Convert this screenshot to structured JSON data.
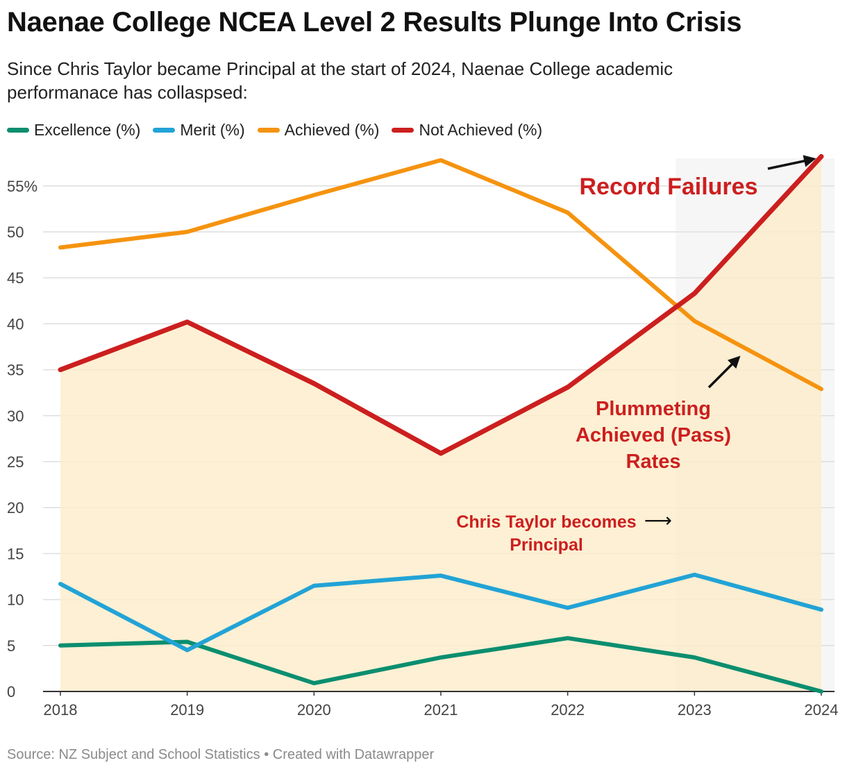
{
  "title": "Naenae College NCEA Level 2 Results Plunge Into Crisis",
  "subtitle": "Since Chris Taylor became Principal at the start of 2024, Naenae College academic performanace has collaspsed:",
  "footer": {
    "source": "Source: NZ Subject and School Statistics",
    "separator": "•",
    "credit": "Created with Datawrapper"
  },
  "chart_data": {
    "type": "line",
    "categories": [
      "2018",
      "2019",
      "2020",
      "2021",
      "2022",
      "2023",
      "2024"
    ],
    "series": [
      {
        "name": "Excellence (%)",
        "color": "#0a8e6f",
        "values": [
          5.0,
          5.4,
          0.9,
          3.7,
          5.8,
          3.7,
          0.0
        ]
      },
      {
        "name": "Merit (%)",
        "color": "#22a3d6",
        "values": [
          11.7,
          4.5,
          11.5,
          12.6,
          9.1,
          12.7,
          8.9
        ]
      },
      {
        "name": "Achieved (%)",
        "color": "#f5930f",
        "values": [
          48.3,
          50.0,
          54.0,
          57.8,
          52.1,
          40.3,
          32.9
        ]
      },
      {
        "name": "Not Achieved (%)",
        "color": "#cc1f1f",
        "values": [
          35.0,
          40.2,
          33.5,
          25.9,
          33.1,
          43.3,
          58.2
        ]
      }
    ],
    "area_series": "Not Achieved (%)",
    "area_color": "#fdecc9",
    "highlight_range": [
      "2023",
      "2024"
    ],
    "yticks": [
      {
        "value": 0,
        "label": "0"
      },
      {
        "value": 5,
        "label": "5"
      },
      {
        "value": 10,
        "label": "10"
      },
      {
        "value": 15,
        "label": "15"
      },
      {
        "value": 20,
        "label": "20"
      },
      {
        "value": 25,
        "label": "25"
      },
      {
        "value": 30,
        "label": "30"
      },
      {
        "value": 35,
        "label": "35"
      },
      {
        "value": 40,
        "label": "40"
      },
      {
        "value": 45,
        "label": "45"
      },
      {
        "value": 50,
        "label": "50"
      },
      {
        "value": 55,
        "label": "55%"
      }
    ],
    "ylim": [
      0,
      58.2
    ],
    "xlabel": "",
    "ylabel": "",
    "annotations": [
      {
        "id": "record-failures",
        "text": "Record Failures",
        "color": "#cc1f1f"
      },
      {
        "id": "plummeting",
        "text": "Plummeting Achieved (Pass) Rates",
        "lines": [
          "Plummeting",
          "Achieved (Pass)",
          "Rates"
        ],
        "color": "#cc1f1f"
      },
      {
        "id": "chris-taylor",
        "lines": [
          "Chris Taylor becomes",
          "Principal"
        ],
        "arrow": "⟶",
        "color": "#cc1f1f"
      }
    ]
  }
}
